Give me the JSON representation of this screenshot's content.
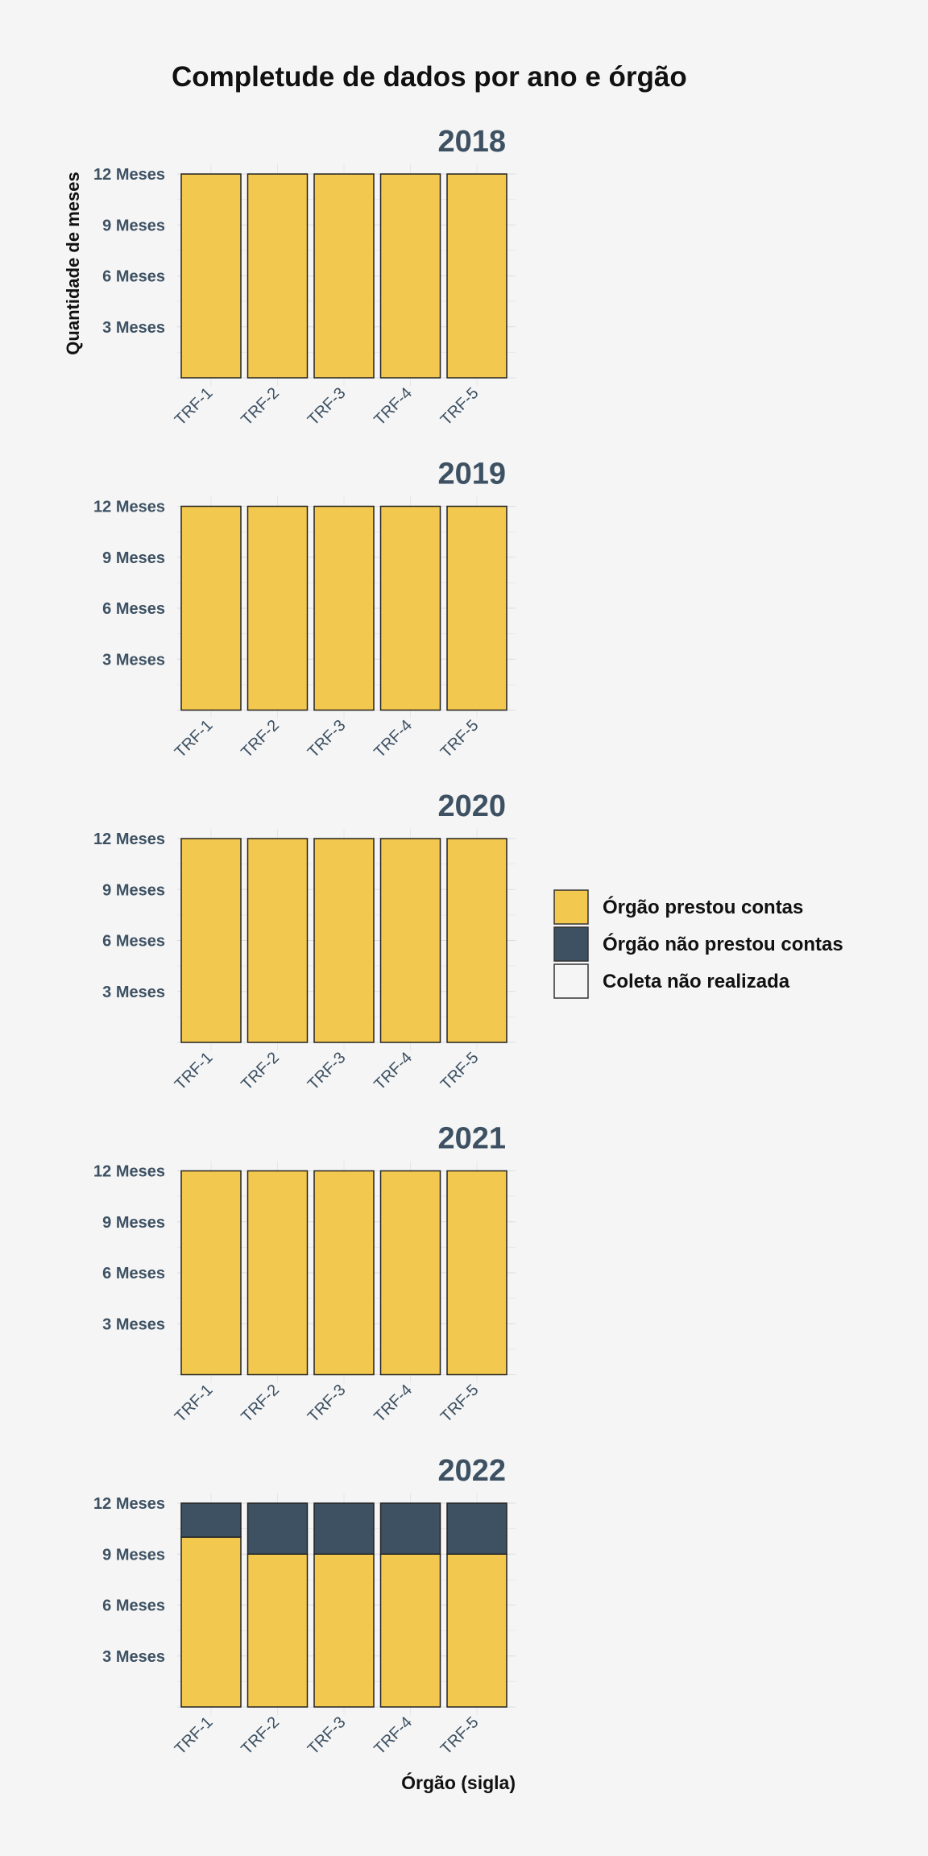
{
  "chart_data": {
    "type": "bar",
    "stacked": true,
    "title": "Completude de dados por ano e órgão",
    "xlabel": "Órgão (sigla)",
    "ylabel": "Quantidade de meses",
    "ylim": [
      0,
      12
    ],
    "y_ticks": [
      3,
      6,
      9,
      12
    ],
    "y_tick_labels": [
      "3 Meses",
      "6 Meses",
      "9 Meses",
      "12 Meses"
    ],
    "legend_position": "right",
    "colors": {
      "prestou": "#f2c84e",
      "nao_prestou": "#3d5163",
      "nao_realizada": "#f5f5f5",
      "year_title": "#3d5163",
      "tick_label": "#3d5163"
    },
    "legend": [
      {
        "key": "prestou",
        "label": "Órgão prestou contas"
      },
      {
        "key": "nao_prestou",
        "label": "Órgão não prestou contas"
      },
      {
        "key": "nao_realizada",
        "label": "Coleta não realizada"
      }
    ],
    "categories": [
      "TRF-1",
      "TRF-2",
      "TRF-3",
      "TRF-4",
      "TRF-5"
    ],
    "panels": [
      {
        "year": "2018",
        "prestou": [
          12,
          12,
          12,
          12,
          12
        ],
        "nao_prestou": [
          0,
          0,
          0,
          0,
          0
        ],
        "nao_realizada": [
          0,
          0,
          0,
          0,
          0
        ]
      },
      {
        "year": "2019",
        "prestou": [
          12,
          12,
          12,
          12,
          12
        ],
        "nao_prestou": [
          0,
          0,
          0,
          0,
          0
        ],
        "nao_realizada": [
          0,
          0,
          0,
          0,
          0
        ]
      },
      {
        "year": "2020",
        "prestou": [
          12,
          12,
          12,
          12,
          12
        ],
        "nao_prestou": [
          0,
          0,
          0,
          0,
          0
        ],
        "nao_realizada": [
          0,
          0,
          0,
          0,
          0
        ]
      },
      {
        "year": "2021",
        "prestou": [
          12,
          12,
          12,
          12,
          12
        ],
        "nao_prestou": [
          0,
          0,
          0,
          0,
          0
        ],
        "nao_realizada": [
          0,
          0,
          0,
          0,
          0
        ]
      },
      {
        "year": "2022",
        "prestou": [
          10,
          9,
          9,
          9,
          9
        ],
        "nao_prestou": [
          2,
          3,
          3,
          3,
          3
        ],
        "nao_realizada": [
          0,
          0,
          0,
          0,
          0
        ]
      }
    ]
  }
}
